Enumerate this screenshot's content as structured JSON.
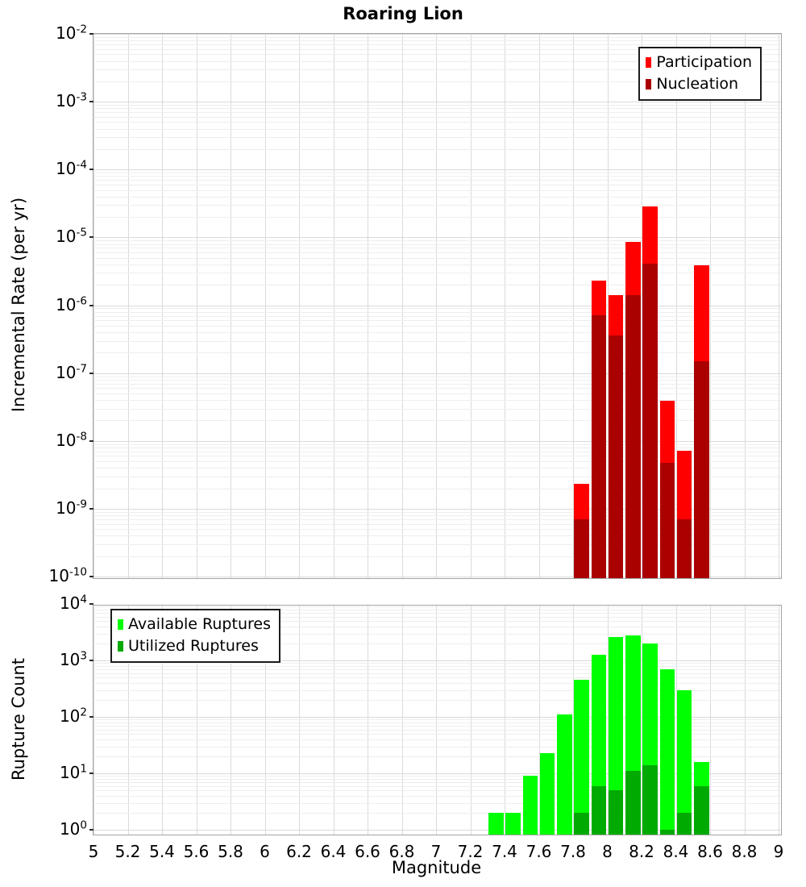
{
  "chart_data": [
    {
      "type": "bar",
      "title": "Roaring Lion",
      "ylabel": "Incremental Rate (per yr)",
      "yscale": "log",
      "ylim": [
        1e-10,
        0.01
      ],
      "xlim": [
        5,
        9
      ],
      "grid": true,
      "legend_position": "top-right",
      "bin_width": 0.1,
      "categories": [
        7.85,
        7.95,
        8.05,
        8.15,
        8.25,
        8.35,
        8.45,
        8.55
      ],
      "series": [
        {
          "name": "Participation",
          "color": "#ff0000",
          "values": [
            2.3e-09,
            2.3e-06,
            1.4e-06,
            8.6e-06,
            2.9e-05,
            3.9e-08,
            7.2e-09,
            3.9e-06
          ]
        },
        {
          "name": "Nucleation",
          "color": "#aa0000",
          "values": [
            7e-10,
            7.2e-07,
            3.6e-07,
            1.4e-06,
            4.1e-06,
            4.8e-09,
            7e-10,
            1.5e-07
          ]
        }
      ],
      "ytick_exponents": [
        -2,
        -3,
        -4,
        -5,
        -6,
        -7,
        -8,
        -9,
        -10
      ]
    },
    {
      "type": "bar",
      "title": "",
      "ylabel": "Rupture Count",
      "xlabel": "Magnitude",
      "yscale": "log",
      "ylim": [
        1,
        10000
      ],
      "xlim": [
        5,
        9
      ],
      "grid": true,
      "legend_position": "top-left",
      "bin_width": 0.1,
      "categories": [
        7.35,
        7.45,
        7.55,
        7.65,
        7.75,
        7.85,
        7.95,
        8.05,
        8.15,
        8.25,
        8.35,
        8.45,
        8.55
      ],
      "series": [
        {
          "name": "Available Ruptures",
          "color": "#00ff00",
          "values": [
            2,
            2,
            9,
            23,
            110,
            450,
            1250,
            2600,
            2800,
            2000,
            700,
            300,
            16
          ]
        },
        {
          "name": "Utilized Ruptures",
          "color": "#00aa00",
          "values": [
            null,
            null,
            null,
            null,
            null,
            2,
            6,
            5,
            11,
            14,
            1,
            2,
            6
          ]
        }
      ],
      "ytick_exponents": [
        4,
        3,
        2,
        1,
        0
      ],
      "xtick_labels": [
        "5",
        "5.2",
        "5.4",
        "5.6",
        "5.8",
        "6",
        "6.2",
        "6.4",
        "6.6",
        "6.8",
        "7",
        "7.2",
        "7.4",
        "7.6",
        "7.8",
        "8",
        "8.2",
        "8.4",
        "8.6",
        "8.8",
        "9"
      ]
    }
  ]
}
